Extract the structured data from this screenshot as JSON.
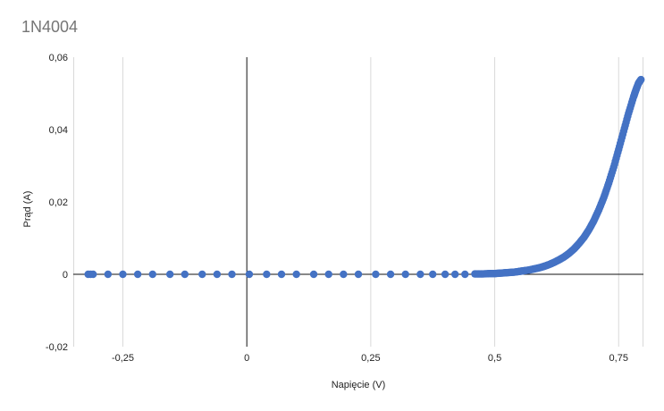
{
  "chart_data": {
    "type": "scatter",
    "title": "1N4004",
    "xlabel": "Napięcie (V)",
    "ylabel": "Prąd (A)",
    "xlim": [
      -0.35,
      0.8
    ],
    "ylim": [
      -0.02,
      0.06
    ],
    "xticks": [
      -0.25,
      0,
      0.25,
      0.5,
      0.75
    ],
    "xtick_labels": [
      "-0,25",
      "0",
      "0,25",
      "0,5",
      "0,75"
    ],
    "yticks": [
      -0.02,
      0,
      0.02,
      0.04,
      0.06
    ],
    "ytick_labels": [
      "-0,02",
      "0",
      "0,02",
      "0,04",
      "0,06"
    ],
    "grid": "vertical",
    "marker_color": "#4472c4",
    "series": [
      {
        "points": [
          [
            -0.32,
            0
          ],
          [
            -0.315,
            0
          ],
          [
            -0.31,
            0
          ],
          [
            -0.28,
            0
          ],
          [
            -0.25,
            0
          ],
          [
            -0.22,
            0
          ],
          [
            -0.19,
            0
          ],
          [
            -0.155,
            0
          ],
          [
            -0.125,
            0
          ],
          [
            -0.09,
            0
          ],
          [
            -0.06,
            0
          ],
          [
            -0.03,
            0
          ],
          [
            0.005,
            0
          ],
          [
            0.04,
            0
          ],
          [
            0.07,
            0
          ],
          [
            0.1,
            0
          ],
          [
            0.135,
            0
          ],
          [
            0.165,
            0
          ],
          [
            0.195,
            0
          ],
          [
            0.225,
            0
          ],
          [
            0.26,
            0
          ],
          [
            0.29,
            0
          ],
          [
            0.32,
            0
          ],
          [
            0.35,
            0
          ],
          [
            0.375,
            0
          ],
          [
            0.4,
            0
          ],
          [
            0.42,
            0
          ],
          [
            0.44,
            0
          ],
          [
            0.46,
            0.0001
          ],
          [
            0.475,
            0.0001
          ],
          [
            0.49,
            0.0002
          ],
          [
            0.5,
            0.0002
          ],
          [
            0.51,
            0.0003
          ],
          [
            0.52,
            0.0004
          ],
          [
            0.53,
            0.0005
          ],
          [
            0.54,
            0.0006
          ],
          [
            0.55,
            0.0008
          ],
          [
            0.56,
            0.001
          ],
          [
            0.57,
            0.0012
          ],
          [
            0.58,
            0.0015
          ],
          [
            0.59,
            0.0018
          ],
          [
            0.6,
            0.0022
          ],
          [
            0.61,
            0.0027
          ],
          [
            0.62,
            0.0033
          ],
          [
            0.63,
            0.004
          ],
          [
            0.64,
            0.0048
          ],
          [
            0.65,
            0.0058
          ],
          [
            0.66,
            0.007
          ],
          [
            0.67,
            0.0085
          ],
          [
            0.68,
            0.0102
          ],
          [
            0.69,
            0.0123
          ],
          [
            0.7,
            0.0148
          ],
          [
            0.71,
            0.0178
          ],
          [
            0.72,
            0.0212
          ],
          [
            0.73,
            0.0252
          ],
          [
            0.74,
            0.0296
          ],
          [
            0.75,
            0.0345
          ],
          [
            0.76,
            0.0395
          ],
          [
            0.77,
            0.0445
          ],
          [
            0.78,
            0.049
          ],
          [
            0.785,
            0.051
          ],
          [
            0.79,
            0.0528
          ],
          [
            0.795,
            0.0538
          ]
        ]
      }
    ]
  }
}
